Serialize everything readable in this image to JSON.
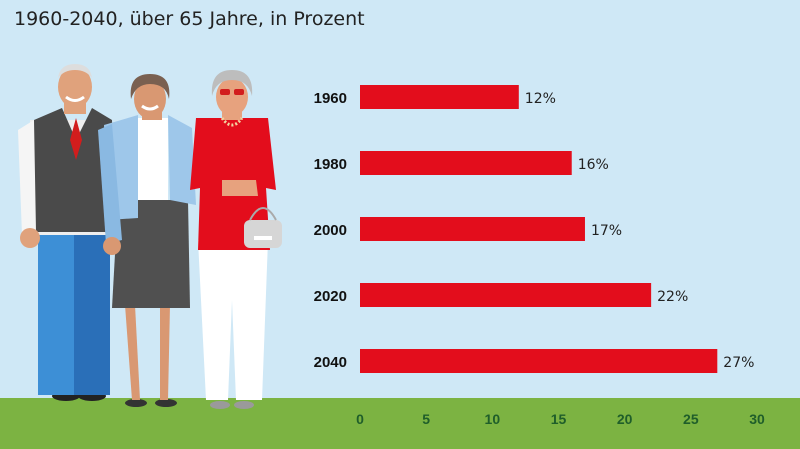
{
  "title": "1960-2040, über 65 Jahre, in Prozent",
  "colors": {
    "background": "#cfe8f6",
    "bar": "#e30d1c",
    "ground": "#7cb342",
    "tick_label": "#1f5e2a"
  },
  "chart_data": {
    "type": "bar",
    "orientation": "horizontal",
    "title": "1960-2040, über 65 Jahre, in Prozent",
    "categories": [
      "1960",
      "1980",
      "2000",
      "2020",
      "2040"
    ],
    "values": [
      12,
      16,
      17,
      22,
      27
    ],
    "value_labels": [
      "12%",
      "16%",
      "17%",
      "22%",
      "27%"
    ],
    "xlim": [
      0,
      30
    ],
    "xticks": [
      0,
      5,
      10,
      15,
      20,
      25,
      30
    ],
    "grid": false,
    "legend": "none"
  }
}
